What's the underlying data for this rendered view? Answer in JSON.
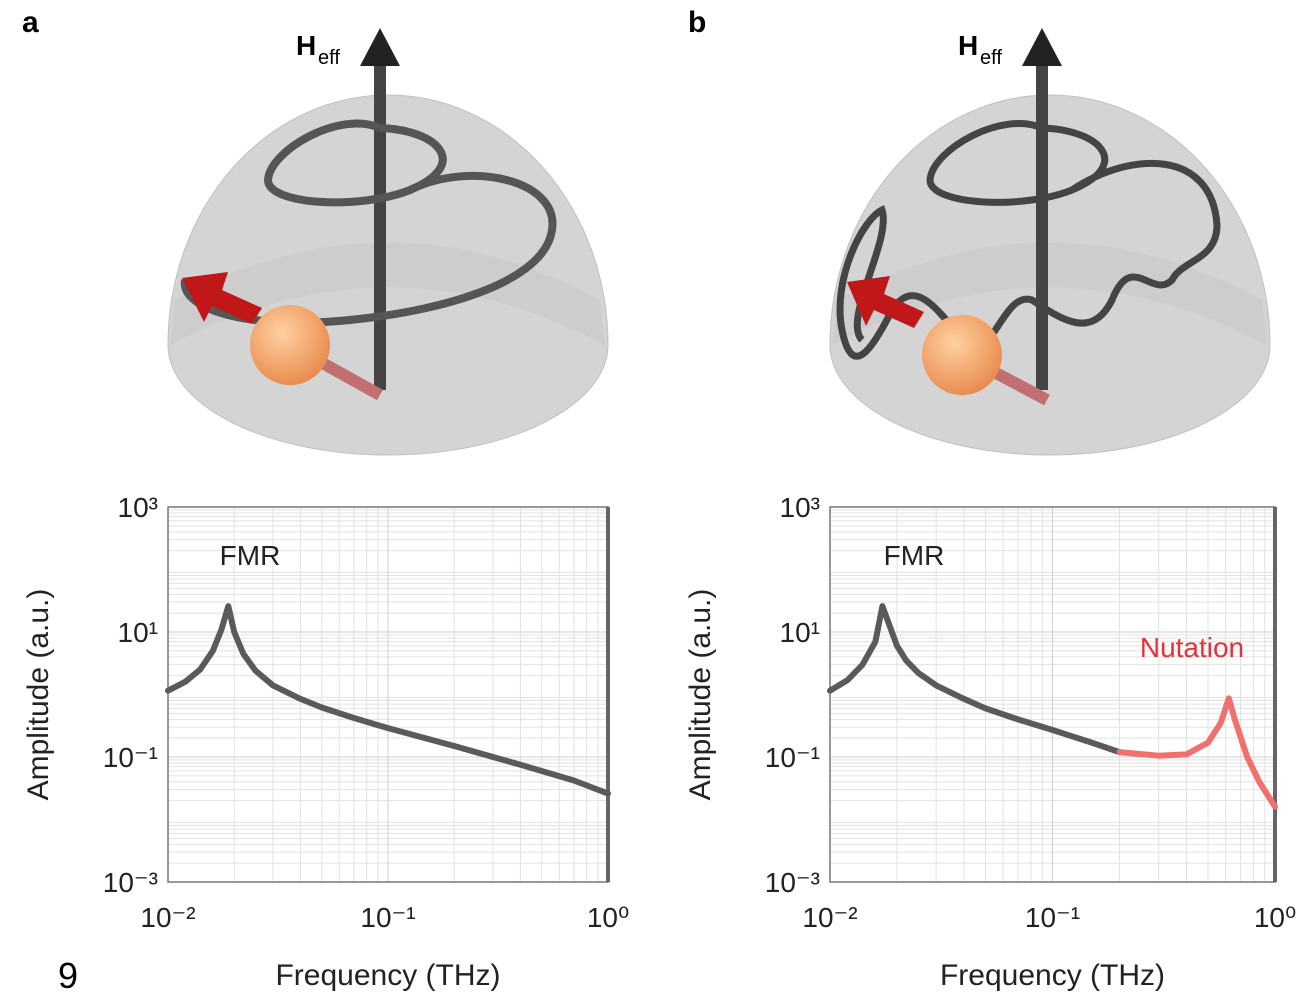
{
  "panel_labels": [
    "a",
    "b"
  ],
  "field_labels": [
    {
      "symbol": "H",
      "subscript": "eff"
    },
    {
      "symbol": "H",
      "subscript": "eff"
    }
  ],
  "page_number": "9",
  "chart_data": [
    {
      "type": "line",
      "log_x": true,
      "log_y": true,
      "grid": true,
      "xlabel": "Frequency (THz)",
      "ylabel": "Amplitude (a.u.)",
      "xlim": [
        0.01,
        1
      ],
      "ylim": [
        0.001,
        1000
      ],
      "xticks": [
        {
          "value": 0.01,
          "label": "10⁻²"
        },
        {
          "value": 0.1,
          "label": "10⁻¹"
        },
        {
          "value": 1,
          "label": "10⁰"
        }
      ],
      "yticks": [
        {
          "value": 0.001,
          "label": "10⁻³"
        },
        {
          "value": 0.1,
          "label": "10⁻¹"
        },
        {
          "value": 10,
          "label": "10¹"
        },
        {
          "value": 1000,
          "label": "10³"
        }
      ],
      "annotations": [
        {
          "text": "FMR",
          "color": "#222222"
        }
      ],
      "series": [
        {
          "color": "#5a5a5a",
          "x": [
            0.01,
            0.012,
            0.014,
            0.016,
            0.0175,
            0.0188,
            0.02,
            0.022,
            0.025,
            0.03,
            0.04,
            0.05,
            0.07,
            0.1,
            0.2,
            0.4,
            0.7,
            1.0
          ],
          "values": [
            1.15,
            1.6,
            2.5,
            5,
            11,
            26,
            10,
            4.5,
            2.4,
            1.4,
            0.85,
            0.62,
            0.42,
            0.29,
            0.15,
            0.075,
            0.042,
            0.026
          ]
        }
      ]
    },
    {
      "type": "line",
      "log_x": true,
      "log_y": true,
      "grid": true,
      "xlabel": "Frequency (THz)",
      "ylabel": "Amplitude (a.u.)",
      "xlim": [
        0.01,
        1
      ],
      "ylim": [
        0.001,
        1000
      ],
      "xticks": [
        {
          "value": 0.01,
          "label": "10⁻²"
        },
        {
          "value": 0.1,
          "label": "10⁻¹"
        },
        {
          "value": 1,
          "label": "10⁰"
        }
      ],
      "yticks": [
        {
          "value": 0.001,
          "label": "10⁻³"
        },
        {
          "value": 0.1,
          "label": "10⁻¹"
        },
        {
          "value": 10,
          "label": "10¹"
        },
        {
          "value": 1000,
          "label": "10³"
        }
      ],
      "annotations": [
        {
          "text": "FMR",
          "color": "#222222"
        },
        {
          "text": "Nutation",
          "color": "#e8303a"
        }
      ],
      "series": [
        {
          "color": "#5a5a5a",
          "x": [
            0.01,
            0.012,
            0.014,
            0.016,
            0.0172,
            0.02,
            0.022,
            0.025,
            0.03,
            0.04,
            0.05,
            0.07,
            0.1,
            0.15,
            0.2
          ],
          "values": [
            1.15,
            1.7,
            3,
            7,
            26,
            6,
            3.5,
            2.2,
            1.4,
            0.85,
            0.6,
            0.4,
            0.27,
            0.17,
            0.12
          ]
        },
        {
          "color": "#f07070",
          "x": [
            0.2,
            0.3,
            0.4,
            0.5,
            0.57,
            0.62,
            0.66,
            0.75,
            0.85,
            1.0
          ],
          "values": [
            0.12,
            0.105,
            0.11,
            0.17,
            0.35,
            0.87,
            0.4,
            0.1,
            0.04,
            0.016
          ]
        }
      ]
    }
  ]
}
